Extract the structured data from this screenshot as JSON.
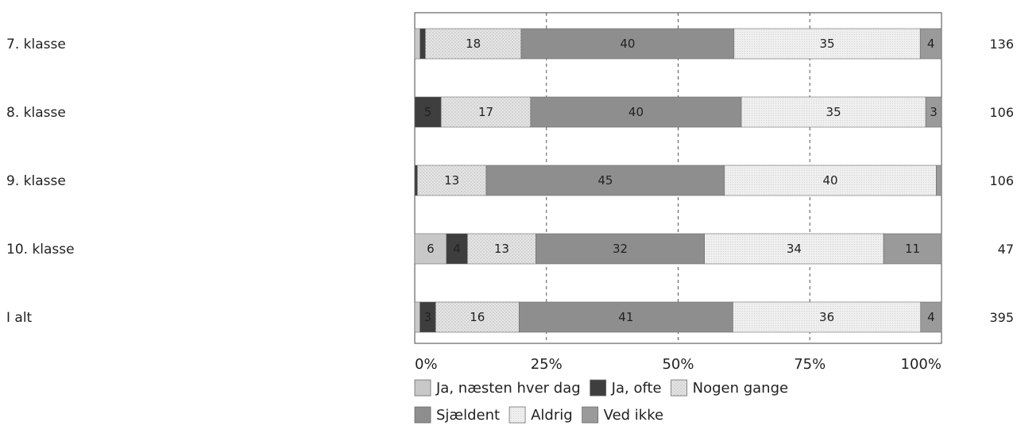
{
  "chart_data": {
    "type": "bar",
    "orientation": "horizontal",
    "stacked": "percent",
    "categories": [
      "7. klasse",
      "8. klasse",
      "9. klasse",
      "10. klasse",
      "I alt"
    ],
    "counts": [
      "136",
      "106",
      "106",
      "47",
      "395"
    ],
    "series": [
      {
        "name": "Ja, næsten hver dag",
        "values": [
          1,
          0,
          0,
          6,
          1
        ],
        "labels": [
          "",
          "",
          "",
          "6",
          ""
        ],
        "color": "#c8c8c8",
        "pattern": "none"
      },
      {
        "name": "Ja, ofte",
        "values": [
          1,
          5,
          0.5,
          4,
          3
        ],
        "labels": [
          "",
          "5",
          "",
          "4",
          "3"
        ],
        "color": "#3e3e3e",
        "pattern": "none"
      },
      {
        "name": "Nogen gange",
        "values": [
          18,
          17,
          13,
          13,
          16
        ],
        "labels": [
          "18",
          "17",
          "13",
          "13",
          "16"
        ],
        "color": "#e2e2e2",
        "pattern": "dots"
      },
      {
        "name": "Sjældent",
        "values": [
          40,
          40,
          45,
          32,
          41
        ],
        "labels": [
          "40",
          "40",
          "45",
          "32",
          "41"
        ],
        "color": "#8e8e8e",
        "pattern": "none"
      },
      {
        "name": "Aldrig",
        "values": [
          35,
          35,
          40,
          34,
          36
        ],
        "labels": [
          "35",
          "35",
          "40",
          "34",
          "36"
        ],
        "color": "#ebebeb",
        "pattern": "fine-dots"
      },
      {
        "name": "Ved ikke",
        "values": [
          4,
          3,
          1,
          11,
          4
        ],
        "labels": [
          "4",
          "3",
          "",
          "11",
          "4"
        ],
        "color": "#9a9a9a",
        "pattern": "none"
      }
    ],
    "xticks": [
      "0%",
      "25%",
      "50%",
      "75%",
      "100%"
    ],
    "xlim": [
      0,
      100
    ],
    "grid": "vertical dashed",
    "legend_position": "bottom"
  }
}
